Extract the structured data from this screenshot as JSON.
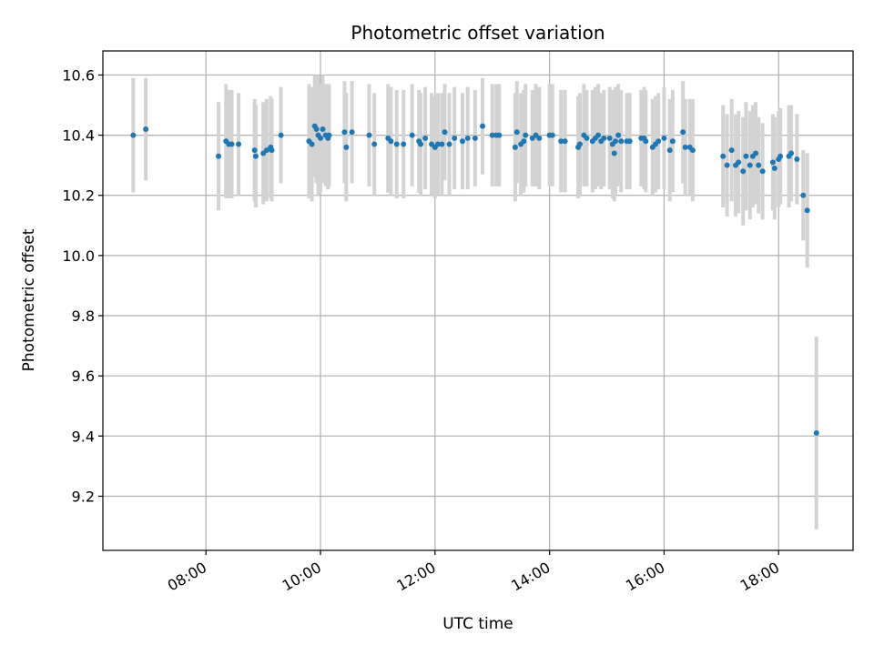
{
  "chart_data": {
    "type": "scatter",
    "title": "Photometric offset variation",
    "xlabel": "UTC time",
    "ylabel": "Photometric offset",
    "x_unit": "hours UTC",
    "xlim": [
      6.2,
      19.3
    ],
    "ylim": [
      9.02,
      10.68
    ],
    "grid": true,
    "x_ticks": [
      {
        "value": 8,
        "label": "08:00"
      },
      {
        "value": 10,
        "label": "10:00"
      },
      {
        "value": 12,
        "label": "12:00"
      },
      {
        "value": 14,
        "label": "14:00"
      },
      {
        "value": 16,
        "label": "16:00"
      },
      {
        "value": 18,
        "label": "18:00"
      }
    ],
    "y_ticks": [
      {
        "value": 9.2,
        "label": "9.2"
      },
      {
        "value": 9.4,
        "label": "9.4"
      },
      {
        "value": 9.6,
        "label": "9.6"
      },
      {
        "value": 9.8,
        "label": "9.8"
      },
      {
        "value": 10.0,
        "label": "10.0"
      },
      {
        "value": 10.2,
        "label": "10.2"
      },
      {
        "value": 10.4,
        "label": "10.4"
      },
      {
        "value": 10.6,
        "label": "10.6"
      }
    ],
    "colors": {
      "marker": "#1f77b4",
      "errorbar": "#d3d3d3",
      "grid": "#b0b0b0",
      "axes": "#000000"
    },
    "points": [
      [
        6.73,
        10.4,
        0.19
      ],
      [
        6.95,
        10.42,
        0.17
      ],
      [
        8.22,
        10.33,
        0.18
      ],
      [
        8.35,
        10.38,
        0.19
      ],
      [
        8.4,
        10.37,
        0.18
      ],
      [
        8.45,
        10.37,
        0.18
      ],
      [
        8.57,
        10.37,
        0.17
      ],
      [
        8.85,
        10.35,
        0.17
      ],
      [
        8.87,
        10.33,
        0.17
      ],
      [
        9.0,
        10.34,
        0.17
      ],
      [
        9.06,
        10.35,
        0.17
      ],
      [
        9.13,
        10.36,
        0.17
      ],
      [
        9.15,
        10.35,
        0.17
      ],
      [
        9.31,
        10.4,
        0.16
      ],
      [
        9.8,
        10.38,
        0.19
      ],
      [
        9.85,
        10.37,
        0.19
      ],
      [
        9.9,
        10.43,
        0.17
      ],
      [
        9.93,
        10.42,
        0.18
      ],
      [
        9.96,
        10.4,
        0.2
      ],
      [
        10.0,
        10.39,
        0.18
      ],
      [
        10.04,
        10.42,
        0.18
      ],
      [
        10.09,
        10.4,
        0.17
      ],
      [
        10.13,
        10.39,
        0.17
      ],
      [
        10.15,
        10.4,
        0.17
      ],
      [
        10.42,
        10.41,
        0.17
      ],
      [
        10.45,
        10.36,
        0.18
      ],
      [
        10.55,
        10.41,
        0.17
      ],
      [
        10.85,
        10.4,
        0.17
      ],
      [
        10.94,
        10.37,
        0.17
      ],
      [
        11.18,
        10.39,
        0.18
      ],
      [
        11.23,
        10.38,
        0.18
      ],
      [
        11.33,
        10.37,
        0.18
      ],
      [
        11.45,
        10.37,
        0.18
      ],
      [
        11.6,
        10.4,
        0.17
      ],
      [
        11.72,
        10.38,
        0.17
      ],
      [
        11.75,
        10.37,
        0.17
      ],
      [
        11.83,
        10.39,
        0.17
      ],
      [
        11.94,
        10.37,
        0.17
      ],
      [
        12.0,
        10.36,
        0.17
      ],
      [
        12.05,
        10.37,
        0.17
      ],
      [
        12.12,
        10.37,
        0.17
      ],
      [
        12.17,
        10.41,
        0.16
      ],
      [
        12.25,
        10.37,
        0.17
      ],
      [
        12.34,
        10.39,
        0.17
      ],
      [
        12.48,
        10.38,
        0.16
      ],
      [
        12.57,
        10.39,
        0.17
      ],
      [
        12.7,
        10.39,
        0.16
      ],
      [
        12.83,
        10.43,
        0.16
      ],
      [
        13.0,
        10.4,
        0.17
      ],
      [
        13.07,
        10.4,
        0.17
      ],
      [
        13.12,
        10.4,
        0.17
      ],
      [
        13.4,
        10.36,
        0.18
      ],
      [
        13.43,
        10.41,
        0.17
      ],
      [
        13.5,
        10.37,
        0.17
      ],
      [
        13.55,
        10.38,
        0.17
      ],
      [
        13.58,
        10.4,
        0.17
      ],
      [
        13.7,
        10.39,
        0.16
      ],
      [
        13.76,
        10.4,
        0.17
      ],
      [
        13.82,
        10.39,
        0.17
      ],
      [
        14.0,
        10.4,
        0.17
      ],
      [
        14.05,
        10.4,
        0.17
      ],
      [
        14.2,
        10.38,
        0.17
      ],
      [
        14.27,
        10.38,
        0.17
      ],
      [
        14.5,
        10.36,
        0.17
      ],
      [
        14.53,
        10.37,
        0.17
      ],
      [
        14.6,
        10.4,
        0.17
      ],
      [
        14.65,
        10.39,
        0.16
      ],
      [
        14.75,
        10.38,
        0.17
      ],
      [
        14.8,
        10.39,
        0.17
      ],
      [
        14.85,
        10.4,
        0.17
      ],
      [
        14.9,
        10.38,
        0.16
      ],
      [
        14.95,
        10.39,
        0.16
      ],
      [
        15.05,
        10.39,
        0.17
      ],
      [
        15.1,
        10.37,
        0.18
      ],
      [
        15.15,
        10.38,
        0.18
      ],
      [
        15.2,
        10.4,
        0.17
      ],
      [
        15.25,
        10.38,
        0.17
      ],
      [
        15.35,
        10.38,
        0.16
      ],
      [
        15.4,
        10.38,
        0.16
      ],
      [
        15.13,
        10.34,
        0.16
      ],
      [
        15.6,
        10.39,
        0.16
      ],
      [
        15.65,
        10.39,
        0.17
      ],
      [
        15.68,
        10.38,
        0.17
      ],
      [
        15.8,
        10.36,
        0.16
      ],
      [
        15.85,
        10.37,
        0.16
      ],
      [
        15.9,
        10.38,
        0.16
      ],
      [
        16.0,
        10.39,
        0.17
      ],
      [
        16.1,
        10.35,
        0.17
      ],
      [
        16.15,
        10.38,
        0.17
      ],
      [
        16.33,
        10.41,
        0.17
      ],
      [
        16.37,
        10.36,
        0.16
      ],
      [
        16.45,
        10.36,
        0.16
      ],
      [
        16.5,
        10.35,
        0.17
      ],
      [
        17.03,
        10.33,
        0.17
      ],
      [
        17.1,
        10.3,
        0.17
      ],
      [
        17.18,
        10.35,
        0.17
      ],
      [
        17.25,
        10.3,
        0.17
      ],
      [
        17.3,
        10.31,
        0.17
      ],
      [
        17.38,
        10.28,
        0.18
      ],
      [
        17.43,
        10.33,
        0.18
      ],
      [
        17.5,
        10.3,
        0.18
      ],
      [
        17.55,
        10.33,
        0.17
      ],
      [
        17.6,
        10.34,
        0.17
      ],
      [
        17.65,
        10.3,
        0.16
      ],
      [
        17.72,
        10.28,
        0.16
      ],
      [
        17.9,
        10.31,
        0.16
      ],
      [
        17.93,
        10.29,
        0.17
      ],
      [
        18.0,
        10.32,
        0.16
      ],
      [
        18.03,
        10.33,
        0.16
      ],
      [
        18.18,
        10.33,
        0.17
      ],
      [
        18.22,
        10.34,
        0.16
      ],
      [
        18.32,
        10.32,
        0.15
      ],
      [
        18.43,
        10.2,
        0.15
      ],
      [
        18.5,
        10.15,
        0.19
      ],
      [
        18.66,
        9.41,
        0.32
      ]
    ]
  }
}
